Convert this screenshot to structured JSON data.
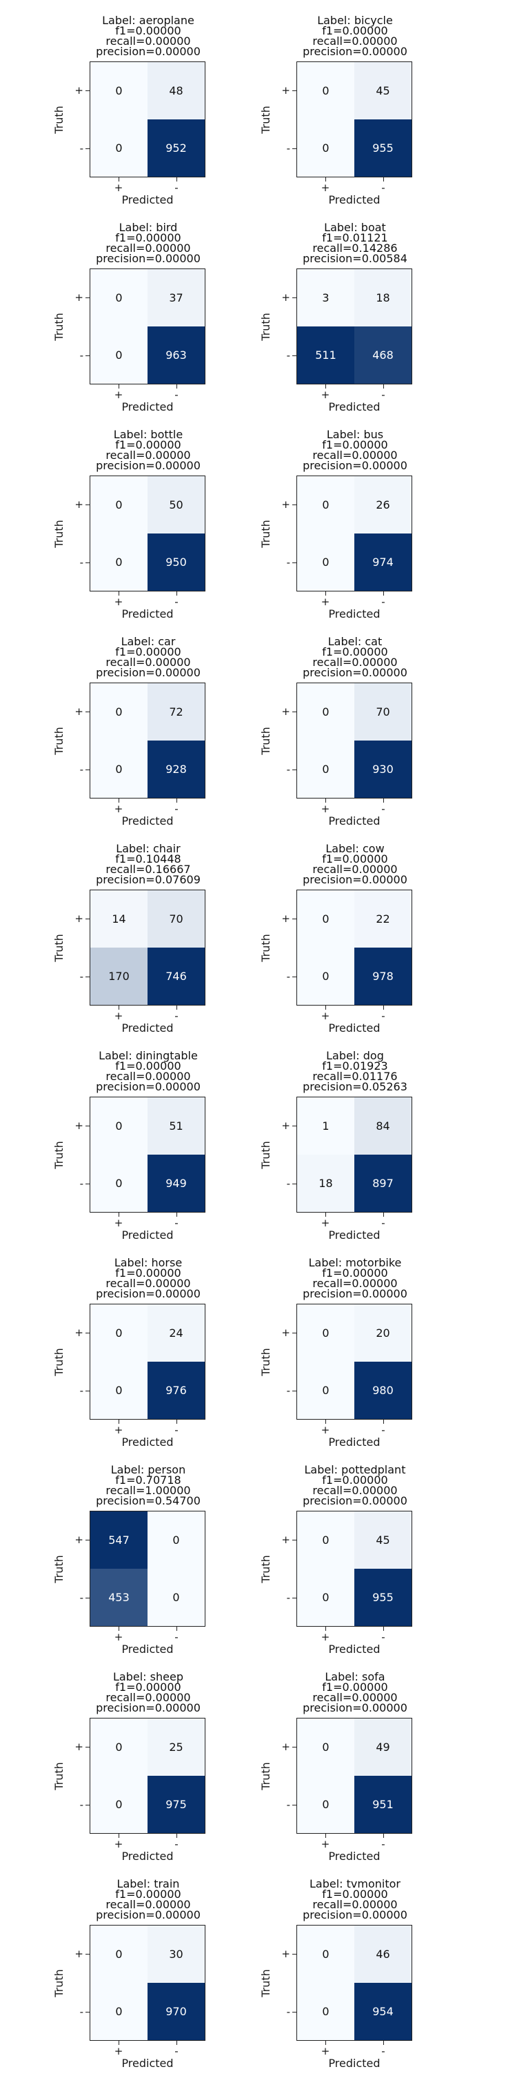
{
  "chart_data": {
    "type": "heatmap",
    "colormap": "Blues",
    "xlabel": "Predicted",
    "ylabel": "Truth",
    "x_tick_labels": [
      "+",
      "-"
    ],
    "y_tick_labels": [
      "+",
      "-"
    ],
    "panels": [
      {
        "label_line": "Label: aeroplane",
        "f1_line": "f1=0.00000",
        "recall_line": "recall=0.00000",
        "precision_line": "precision=0.00000",
        "matrix": [
          [
            0,
            48
          ],
          [
            0,
            952
          ]
        ]
      },
      {
        "label_line": "Label: bicycle",
        "f1_line": "f1=0.00000",
        "recall_line": "recall=0.00000",
        "precision_line": "precision=0.00000",
        "matrix": [
          [
            0,
            45
          ],
          [
            0,
            955
          ]
        ]
      },
      {
        "label_line": "Label: bird",
        "f1_line": "f1=0.00000",
        "recall_line": "recall=0.00000",
        "precision_line": "precision=0.00000",
        "matrix": [
          [
            0,
            37
          ],
          [
            0,
            963
          ]
        ]
      },
      {
        "label_line": "Label: boat",
        "f1_line": "f1=0.01121",
        "recall_line": "recall=0.14286",
        "precision_line": "precision=0.00584",
        "matrix": [
          [
            3,
            18
          ],
          [
            511,
            468
          ]
        ]
      },
      {
        "label_line": "Label: bottle",
        "f1_line": "f1=0.00000",
        "recall_line": "recall=0.00000",
        "precision_line": "precision=0.00000",
        "matrix": [
          [
            0,
            50
          ],
          [
            0,
            950
          ]
        ]
      },
      {
        "label_line": "Label: bus",
        "f1_line": "f1=0.00000",
        "recall_line": "recall=0.00000",
        "precision_line": "precision=0.00000",
        "matrix": [
          [
            0,
            26
          ],
          [
            0,
            974
          ]
        ]
      },
      {
        "label_line": "Label: car",
        "f1_line": "f1=0.00000",
        "recall_line": "recall=0.00000",
        "precision_line": "precision=0.00000",
        "matrix": [
          [
            0,
            72
          ],
          [
            0,
            928
          ]
        ]
      },
      {
        "label_line": "Label: cat",
        "f1_line": "f1=0.00000",
        "recall_line": "recall=0.00000",
        "precision_line": "precision=0.00000",
        "matrix": [
          [
            0,
            70
          ],
          [
            0,
            930
          ]
        ]
      },
      {
        "label_line": "Label: chair",
        "f1_line": "f1=0.10448",
        "recall_line": "recall=0.16667",
        "precision_line": "precision=0.07609",
        "matrix": [
          [
            14,
            70
          ],
          [
            170,
            746
          ]
        ]
      },
      {
        "label_line": "Label: cow",
        "f1_line": "f1=0.00000",
        "recall_line": "recall=0.00000",
        "precision_line": "precision=0.00000",
        "matrix": [
          [
            0,
            22
          ],
          [
            0,
            978
          ]
        ]
      },
      {
        "label_line": "Label: diningtable",
        "f1_line": "f1=0.00000",
        "recall_line": "recall=0.00000",
        "precision_line": "precision=0.00000",
        "matrix": [
          [
            0,
            51
          ],
          [
            0,
            949
          ]
        ]
      },
      {
        "label_line": "Label: dog",
        "f1_line": "f1=0.01923",
        "recall_line": "recall=0.01176",
        "precision_line": "precision=0.05263",
        "matrix": [
          [
            1,
            84
          ],
          [
            18,
            897
          ]
        ]
      },
      {
        "label_line": "Label: horse",
        "f1_line": "f1=0.00000",
        "recall_line": "recall=0.00000",
        "precision_line": "precision=0.00000",
        "matrix": [
          [
            0,
            24
          ],
          [
            0,
            976
          ]
        ]
      },
      {
        "label_line": "Label: motorbike",
        "f1_line": "f1=0.00000",
        "recall_line": "recall=0.00000",
        "precision_line": "precision=0.00000",
        "matrix": [
          [
            0,
            20
          ],
          [
            0,
            980
          ]
        ]
      },
      {
        "label_line": "Label: person",
        "f1_line": "f1=0.70718",
        "recall_line": "recall=1.00000",
        "precision_line": "precision=0.54700",
        "matrix": [
          [
            547,
            0
          ],
          [
            453,
            0
          ]
        ]
      },
      {
        "label_line": "Label: pottedplant",
        "f1_line": "f1=0.00000",
        "recall_line": "recall=0.00000",
        "precision_line": "precision=0.00000",
        "matrix": [
          [
            0,
            45
          ],
          [
            0,
            955
          ]
        ]
      },
      {
        "label_line": "Label: sheep",
        "f1_line": "f1=0.00000",
        "recall_line": "recall=0.00000",
        "precision_line": "precision=0.00000",
        "matrix": [
          [
            0,
            25
          ],
          [
            0,
            975
          ]
        ]
      },
      {
        "label_line": "Label: sofa",
        "f1_line": "f1=0.00000",
        "recall_line": "recall=0.00000",
        "precision_line": "precision=0.00000",
        "matrix": [
          [
            0,
            49
          ],
          [
            0,
            951
          ]
        ]
      },
      {
        "label_line": "Label: train",
        "f1_line": "f1=0.00000",
        "recall_line": "recall=0.00000",
        "precision_line": "precision=0.00000",
        "matrix": [
          [
            0,
            30
          ],
          [
            0,
            970
          ]
        ]
      },
      {
        "label_line": "Label: tvmonitor",
        "f1_line": "f1=0.00000",
        "recall_line": "recall=0.00000",
        "precision_line": "precision=0.00000",
        "matrix": [
          [
            0,
            46
          ],
          [
            0,
            954
          ]
        ]
      }
    ]
  }
}
